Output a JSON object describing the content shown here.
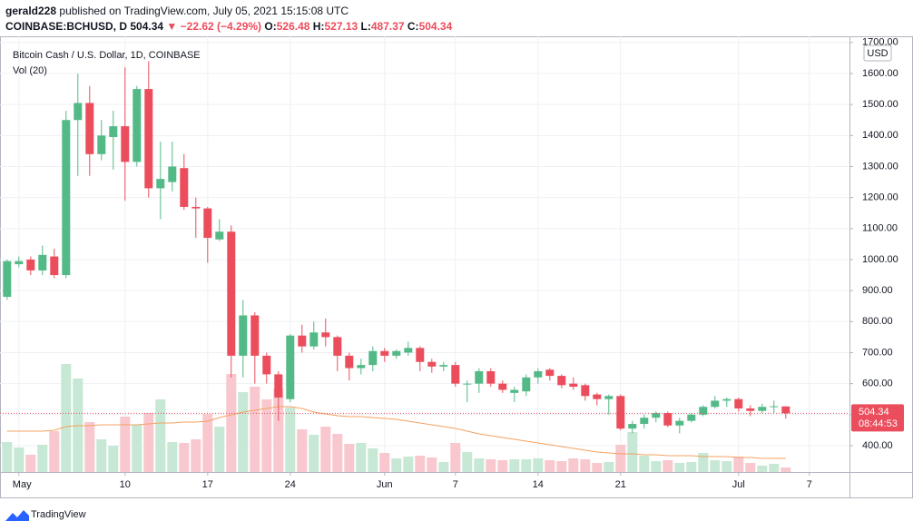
{
  "header": {
    "author": "gerald228",
    "published": "published on TradingView.com, July 05, 2021 15:15:08 UTC",
    "symbol": "COINBASE:BCHUSD, D",
    "arrow": "▼",
    "change": "−22.62",
    "change_pct": "(−4.29%)",
    "open_label": "O:",
    "high_label": "H:",
    "low_label": "L:",
    "close_label": "C:"
  },
  "chart_data": {
    "type": "candlestick",
    "title": "Bitcoin Cash / U.S. Dollar, 1D, COINBASE",
    "volume_label": "Vol (20)",
    "currency": "USD",
    "countdown": "08:44:53",
    "up_color": "#53b987",
    "down_color": "#eb4d5c",
    "volume_up_color": "#c6e8d4",
    "volume_down_color": "#f8c8ce",
    "volume_ma_color": "#f4a261",
    "open": [
      880,
      985,
      1000,
      965,
      1010,
      950,
      1450,
      1505,
      1340,
      1395,
      1430,
      1315,
      1550,
      1230,
      1250,
      1295,
      1170,
      1165,
      1065,
      1090,
      690,
      820,
      690,
      630,
      550,
      755,
      720,
      765,
      750,
      690,
      650,
      660,
      705,
      690,
      700,
      715,
      670,
      655,
      660,
      598,
      600,
      640,
      600,
      570,
      575,
      620,
      645,
      625,
      600,
      595,
      565,
      550,
      560,
      455,
      470,
      490,
      505,
      465,
      480,
      500,
      525,
      545,
      550,
      520,
      512,
      525,
      526.48
    ],
    "high": [
      1000,
      1010,
      1010,
      1045,
      1035,
      1480,
      1600,
      1560,
      1450,
      1480,
      1620,
      1560,
      1640,
      1380,
      1380,
      1340,
      1200,
      1170,
      1130,
      1110,
      870,
      830,
      700,
      640,
      760,
      790,
      800,
      810,
      755,
      700,
      680,
      720,
      715,
      710,
      735,
      720,
      680,
      670,
      670,
      610,
      650,
      650,
      610,
      590,
      630,
      650,
      650,
      630,
      620,
      600,
      570,
      565,
      565,
      480,
      500,
      510,
      510,
      490,
      505,
      530,
      560,
      555,
      555,
      530,
      535,
      545,
      527.13
    ],
    "low": [
      870,
      975,
      950,
      950,
      940,
      940,
      1270,
      1270,
      1320,
      1290,
      1190,
      1300,
      1200,
      1130,
      1220,
      1160,
      1070,
      990,
      1060,
      620,
      620,
      600,
      600,
      480,
      540,
      700,
      710,
      720,
      640,
      610,
      630,
      640,
      670,
      680,
      690,
      640,
      635,
      640,
      590,
      540,
      570,
      590,
      570,
      540,
      560,
      600,
      610,
      585,
      580,
      545,
      530,
      500,
      450,
      440,
      455,
      475,
      460,
      440,
      475,
      495,
      520,
      525,
      510,
      495,
      505,
      505,
      487.37
    ],
    "close": [
      995,
      995,
      965,
      1015,
      950,
      1450,
      1505,
      1340,
      1400,
      1430,
      1315,
      1550,
      1230,
      1260,
      1300,
      1170,
      1165,
      1070,
      1090,
      690,
      820,
      690,
      630,
      555,
      755,
      720,
      765,
      750,
      690,
      650,
      660,
      705,
      690,
      705,
      715,
      670,
      655,
      660,
      600,
      600,
      640,
      600,
      580,
      580,
      620,
      640,
      625,
      595,
      590,
      560,
      550,
      560,
      455,
      470,
      490,
      505,
      465,
      480,
      500,
      525,
      545,
      550,
      520,
      512,
      525,
      527,
      504.34
    ],
    "volume": [
      33,
      27,
      19,
      30,
      45,
      119,
      103,
      55,
      36,
      29,
      61,
      52,
      65,
      80,
      33,
      32,
      36,
      64,
      50,
      108,
      88,
      94,
      80,
      92,
      71,
      47,
      41,
      50,
      42,
      31,
      32,
      26,
      21,
      15,
      17,
      18,
      16,
      11,
      32,
      22,
      15,
      14,
      13,
      14,
      14,
      15,
      13,
      12,
      15,
      14,
      10,
      11,
      30,
      44,
      18,
      12,
      13,
      10,
      11,
      21,
      13,
      12,
      17,
      10,
      7,
      9,
      5
    ],
    "volume_ma": [
      45,
      45,
      45,
      45,
      46,
      50,
      51,
      51,
      52,
      52,
      52,
      52,
      53,
      54,
      54,
      55,
      55,
      56,
      60,
      63,
      66,
      68,
      70,
      72,
      72,
      70,
      66,
      64,
      62,
      61,
      61,
      60,
      59,
      58,
      56,
      54,
      52,
      50,
      48,
      45,
      42,
      40,
      38,
      36,
      34,
      32,
      30,
      28,
      26,
      24,
      22,
      21,
      20,
      20,
      19,
      19,
      18,
      18,
      18,
      17,
      17,
      17,
      16,
      16,
      15,
      15,
      15
    ],
    "xlim": [
      -0.6,
      71.4
    ],
    "xticks": [
      {
        "value": 1,
        "label": "May"
      },
      {
        "value": 10,
        "label": "10"
      },
      {
        "value": 17,
        "label": "17"
      },
      {
        "value": 24,
        "label": "24"
      },
      {
        "value": 32,
        "label": "Jun"
      },
      {
        "value": 38,
        "label": "7"
      },
      {
        "value": 45,
        "label": "14"
      },
      {
        "value": 52,
        "label": "21"
      },
      {
        "value": 62,
        "label": "Jul"
      },
      {
        "value": 68,
        "label": "7"
      }
    ],
    "ylim": [
      315,
      1720
    ],
    "yticks": [
      {
        "value": 400,
        "label": "400.00"
      },
      {
        "value": 500,
        "label": "500.00"
      },
      {
        "value": 600,
        "label": "600.00"
      },
      {
        "value": 700,
        "label": "700.00"
      },
      {
        "value": 800,
        "label": "800.00"
      },
      {
        "value": 900,
        "label": "900.00"
      },
      {
        "value": 1000,
        "label": "1000.00"
      },
      {
        "value": 1100,
        "label": "1100.00"
      },
      {
        "value": 1200,
        "label": "1200.00"
      },
      {
        "value": 1300,
        "label": "1300.00"
      },
      {
        "value": 1400,
        "label": "1400.00"
      },
      {
        "value": 1500,
        "label": "1500.00"
      },
      {
        "value": 1600,
        "label": "1600.00"
      },
      {
        "value": 1700,
        "label": "1700.00"
      }
    ],
    "volume_lim": [
      0,
      480
    ],
    "grid": true
  },
  "footer": {
    "brand": "TradingView"
  }
}
